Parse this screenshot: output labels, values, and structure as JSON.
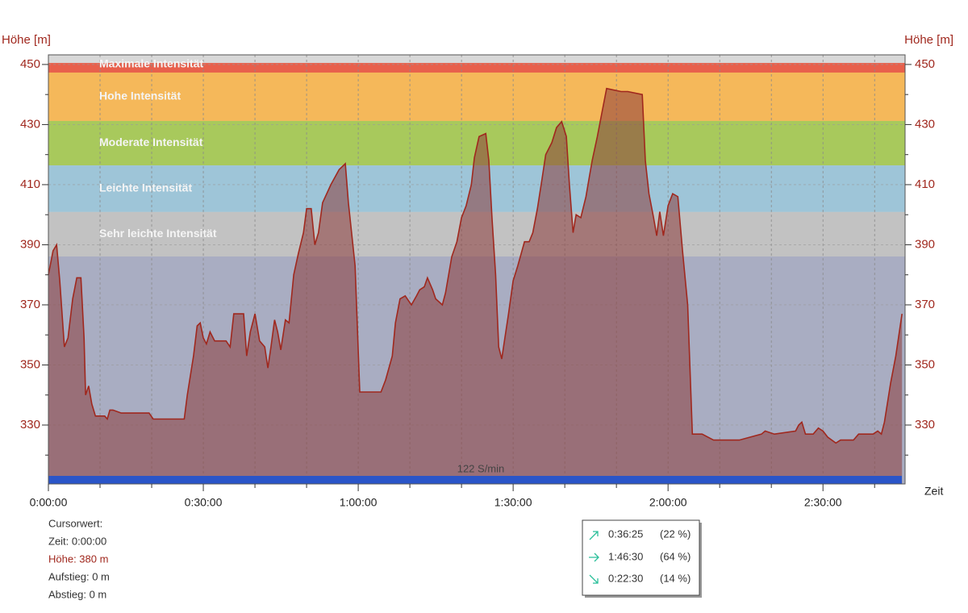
{
  "chart_data": {
    "type": "area",
    "y_label": "Höhe [m]",
    "y2_label": "Höhe [m]",
    "x_label": "Zeit",
    "xlim": [
      0,
      165.9
    ],
    "ylim": [
      310.4,
      453.2
    ],
    "xticks": [
      {
        "value": 0,
        "label": "0:00:00"
      },
      {
        "value": 30,
        "label": "0:30:00"
      },
      {
        "value": 60,
        "label": "1:00:00"
      },
      {
        "value": 90,
        "label": "1:30:00"
      },
      {
        "value": 120,
        "label": "2:00:00"
      },
      {
        "value": 150,
        "label": "2:30:00"
      }
    ],
    "xminor": [
      10,
      20,
      40,
      50,
      70,
      80,
      100,
      110,
      130,
      140,
      160
    ],
    "yticks": [
      330,
      350,
      370,
      390,
      410,
      430,
      450
    ],
    "yminor": [
      320,
      340,
      360,
      380,
      400,
      420,
      440
    ],
    "grid": true,
    "line_color": "#a0281e",
    "fill_color": "#8c3c3c",
    "bands": [
      {
        "name": "Maximale Intensität",
        "from": 447.3,
        "to": 450.5,
        "color": "#e8604c"
      },
      {
        "name": "Hohe Intensität",
        "from": 431.2,
        "to": 447.3,
        "color": "#f5b85a"
      },
      {
        "name": "Moderate Intensität",
        "from": 416.4,
        "to": 431.2,
        "color": "#a8c95c"
      },
      {
        "name": "Leichte Intensität",
        "from": 400.9,
        "to": 416.4,
        "color": "#9ec5d8"
      },
      {
        "name": "Sehr leichte Intensität",
        "from": 386.1,
        "to": 400.9,
        "color": "#c2c2c2"
      },
      {
        "from": 310.4,
        "to": 386.1,
        "color": "#a9adc2"
      }
    ],
    "cadence_bar": {
      "label": "122 S/min",
      "color": "#2a55c8"
    },
    "x": [
      0,
      0.9,
      1.6,
      2.2,
      3.1,
      3.8,
      4.7,
      5.5,
      6.3,
      6.9,
      7.2,
      7.8,
      8.4,
      9.1,
      10.9,
      11.4,
      11.9,
      12.5,
      14.1,
      19.5,
      20.3,
      26.3,
      26.9,
      28.1,
      28.8,
      29.4,
      30.0,
      30.6,
      31.3,
      32.2,
      34.4,
      35.2,
      35.9,
      36.9,
      37.8,
      38.4,
      39.1,
      40.0,
      40.9,
      41.9,
      42.5,
      43.1,
      43.8,
      44.4,
      45.0,
      45.9,
      46.6,
      47.5,
      48.4,
      49.4,
      50.0,
      50.9,
      51.6,
      52.3,
      53.1,
      54.7,
      56.3,
      57.5,
      58.1,
      59.4,
      60.3,
      64.4,
      65.3,
      66.6,
      67.2,
      68.1,
      69.1,
      70.3,
      71.3,
      71.9,
      72.8,
      73.4,
      74.4,
      75.0,
      76.3,
      76.9,
      78.1,
      79.1,
      80.0,
      80.9,
      81.9,
      82.5,
      83.4,
      84.7,
      85.3,
      85.9,
      86.6,
      87.2,
      87.8,
      88.4,
      89.1,
      90.0,
      90.9,
      92.2,
      93.1,
      93.8,
      94.7,
      95.6,
      96.3,
      97.5,
      98.4,
      99.4,
      100.3,
      100.9,
      101.6,
      102.2,
      103.1,
      104.1,
      104.7,
      105.3,
      106.3,
      107.2,
      108.1,
      110.9,
      112.2,
      115.0,
      115.6,
      116.3,
      117.2,
      117.8,
      118.4,
      119.1,
      120.0,
      120.9,
      121.9,
      122.8,
      123.8,
      124.7,
      126.6,
      128.8,
      133.8,
      138.1,
      138.8,
      140.6,
      144.7,
      145.3,
      145.9,
      146.6,
      148.1,
      149.1,
      150.0,
      150.9,
      152.5,
      153.4,
      155.9,
      156.9,
      158.8,
      159.7,
      160.6,
      161.3,
      161.9,
      163.1,
      164.1,
      165.3
    ],
    "values": [
      380,
      388,
      390,
      378,
      356,
      359,
      372,
      379,
      379,
      359,
      340,
      343,
      337,
      333,
      333,
      332,
      335,
      335,
      334,
      334,
      332,
      332,
      340,
      353,
      363,
      364,
      359,
      357,
      361,
      358,
      358,
      356,
      367,
      367,
      367,
      353,
      361,
      367,
      358,
      356,
      349,
      356,
      365,
      361,
      355,
      365,
      364,
      380,
      387,
      394,
      402,
      402,
      390,
      394,
      404,
      410,
      415,
      417,
      404,
      383,
      341,
      341,
      345,
      353,
      364,
      372,
      373,
      370,
      373,
      375,
      376,
      379,
      375,
      372,
      370,
      374,
      386,
      391,
      399,
      403,
      410,
      419,
      426,
      427,
      418,
      399,
      380,
      356,
      352,
      359,
      367,
      378,
      383,
      391,
      391,
      394,
      402,
      412,
      420,
      424,
      429,
      431,
      426,
      410,
      394,
      400,
      399,
      406,
      412,
      418,
      426,
      434,
      442,
      441,
      441,
      440,
      418,
      407,
      399,
      393,
      401,
      393,
      403,
      407,
      406,
      388,
      370,
      327,
      327,
      325,
      325,
      327,
      328,
      327,
      328,
      330,
      331,
      327,
      327,
      329,
      328,
      326,
      324,
      325,
      325,
      327,
      327,
      327,
      328,
      327,
      331,
      344,
      353,
      367
    ]
  },
  "cursor": {
    "title": "Cursorwert:",
    "lines": [
      "Zeit: 0:00:00",
      "Höhe:  380 m",
      "Aufstieg: 0 m",
      "Abstieg: 0 m"
    ]
  },
  "stats": [
    {
      "time": "0:36:25",
      "share": "(22 %)"
    },
    {
      "time": "1:46:30",
      "share": "(64 %)"
    },
    {
      "time": "0:22:30",
      "share": "(14 %)"
    }
  ]
}
